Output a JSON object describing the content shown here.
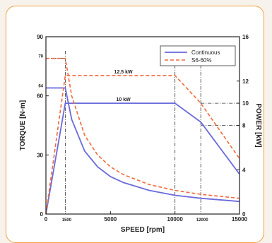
{
  "chart_data": {
    "type": "line",
    "xlabel": "SPEED [rpm]",
    "ylabel_left": "TORQUE [N-m]",
    "ylabel_right": "POWER [kW]",
    "xlim": [
      0,
      15000
    ],
    "ylim_left": [
      0,
      90
    ],
    "ylim_right": [
      0,
      16
    ],
    "x_ticks": [
      "0",
      "5000",
      "10000",
      "15000"
    ],
    "x_ticks_small": [
      "1500",
      "12000"
    ],
    "y_left_ticks": [
      "0",
      "30",
      "60",
      "90"
    ],
    "y_left_ticks_small": [
      "64",
      "79"
    ],
    "y_right_ticks": [
      "0",
      "4",
      "8",
      "10",
      "12",
      "16"
    ],
    "legend": {
      "position": "top-right",
      "items": [
        "Continuous",
        "S6-60%"
      ]
    },
    "annotations": [
      {
        "text": "12.5 kW",
        "x": 6000,
        "y_power": 12.5
      },
      {
        "text": "10 kW",
        "x": 6000,
        "y_power": 10
      }
    ],
    "colors": {
      "continuous": "#6a6adc",
      "s6": "#f06a3c",
      "frame": "#f0a040"
    },
    "series": [
      {
        "name": "Continuous",
        "kind": "torque",
        "x": [
          0,
          1500,
          2000,
          3000,
          4000,
          5000,
          6000,
          8000,
          10000,
          12000,
          15000
        ],
        "y": [
          64,
          64,
          48,
          32,
          24,
          19,
          16,
          12,
          9.5,
          8,
          6.4
        ]
      },
      {
        "name": "Continuous",
        "kind": "power",
        "x": [
          0,
          1500,
          10000,
          12000,
          15000
        ],
        "y": [
          0,
          10,
          10,
          8.3,
          3.6
        ]
      },
      {
        "name": "S6-60%",
        "kind": "torque",
        "x": [
          0,
          1500,
          2000,
          3000,
          4000,
          5000,
          6000,
          8000,
          10000,
          12000,
          15000
        ],
        "y": [
          79,
          79,
          60,
          40,
          30,
          24,
          20,
          15,
          12,
          10,
          8
        ]
      },
      {
        "name": "S6-60%",
        "kind": "power",
        "x": [
          0,
          1500,
          10000,
          12000,
          15000
        ],
        "y": [
          0,
          12.5,
          12.5,
          10,
          5
        ]
      }
    ]
  }
}
